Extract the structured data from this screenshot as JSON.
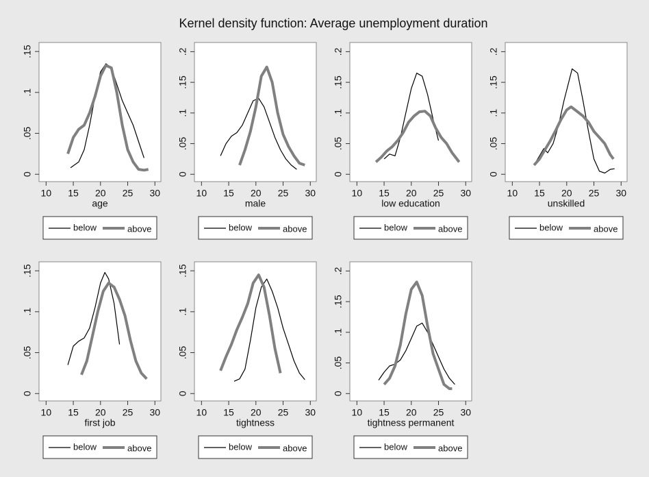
{
  "title": "Kernel density function: Average unemployment duration",
  "chart_data": [
    {
      "type": "line",
      "xlabel": "age",
      "xlim": [
        8.7,
        31.1
      ],
      "xticks": [
        10,
        15,
        20,
        25,
        30
      ],
      "ylim": [
        -0.009,
        0.161
      ],
      "yticks": [
        0,
        {
          "value": 0.05,
          "label": ".05"
        },
        {
          "value": 0.1,
          "label": ".1"
        },
        {
          "value": 0.15,
          "label": ".15"
        }
      ],
      "series": [
        {
          "name": "below",
          "color": "#000000",
          "x": [
            14.5,
            16,
            17,
            18,
            19,
            20,
            21,
            22,
            23,
            24,
            25,
            26,
            27,
            28
          ],
          "values": [
            0.008,
            0.015,
            0.03,
            0.06,
            0.095,
            0.125,
            0.135,
            0.13,
            0.11,
            0.09,
            0.075,
            0.06,
            0.04,
            0.02
          ]
        },
        {
          "name": "above",
          "color": "#808080",
          "x": [
            14,
            15,
            16,
            17,
            18,
            19,
            20,
            21,
            22,
            23,
            24,
            25,
            26,
            27,
            28,
            28.8
          ],
          "values": [
            0.025,
            0.045,
            0.055,
            0.06,
            0.075,
            0.095,
            0.12,
            0.133,
            0.13,
            0.1,
            0.06,
            0.03,
            0.015,
            0.006,
            0.005,
            0.006
          ]
        }
      ]
    },
    {
      "type": "line",
      "xlabel": "male",
      "xlim": [
        8.7,
        31.1
      ],
      "xticks": [
        10,
        15,
        20,
        25,
        30
      ],
      "ylim": [
        -0.012,
        0.215
      ],
      "yticks": [
        0,
        {
          "value": 0.05,
          "label": ".05"
        },
        {
          "value": 0.1,
          "label": ".1"
        },
        {
          "value": 0.15,
          "label": ".15"
        },
        {
          "value": 0.2,
          "label": ".2"
        }
      ],
      "series": [
        {
          "name": "below",
          "color": "#000000",
          "x": [
            13.5,
            14.5,
            15.5,
            16.5,
            17.5,
            18.5,
            19.5,
            20.5,
            21.5,
            22.5,
            23.5,
            24.5,
            25.5,
            26.5,
            27.5
          ],
          "values": [
            0.03,
            0.05,
            0.062,
            0.068,
            0.08,
            0.1,
            0.12,
            0.124,
            0.11,
            0.085,
            0.06,
            0.04,
            0.025,
            0.015,
            0.008
          ]
        },
        {
          "name": "above",
          "color": "#808080",
          "x": [
            17,
            18,
            19,
            20,
            21,
            22,
            23,
            24,
            25,
            26,
            27,
            28,
            29
          ],
          "values": [
            0.015,
            0.04,
            0.07,
            0.11,
            0.16,
            0.175,
            0.15,
            0.1,
            0.065,
            0.045,
            0.03,
            0.018,
            0.015
          ]
        }
      ]
    },
    {
      "type": "line",
      "xlabel": "low education",
      "xlim": [
        8.7,
        31.1
      ],
      "xticks": [
        10,
        15,
        20,
        25,
        30
      ],
      "ylim": [
        -0.012,
        0.215
      ],
      "yticks": [
        0,
        {
          "value": 0.05,
          "label": ".05"
        },
        {
          "value": 0.1,
          "label": ".1"
        },
        {
          "value": 0.15,
          "label": ".15"
        },
        {
          "value": 0.2,
          "label": ".2"
        }
      ],
      "series": [
        {
          "name": "below",
          "color": "#000000",
          "x": [
            15,
            16,
            17,
            18,
            19,
            20,
            21,
            22,
            23,
            24,
            25
          ],
          "values": [
            0.025,
            0.033,
            0.03,
            0.06,
            0.1,
            0.14,
            0.165,
            0.16,
            0.13,
            0.09,
            0.055
          ]
        },
        {
          "name": "above",
          "color": "#808080",
          "x": [
            13.5,
            14.5,
            15.5,
            16.5,
            17.5,
            18.5,
            19.5,
            20.5,
            21.5,
            22.5,
            23.5,
            24.5,
            25.5,
            26.5,
            27.5,
            28.8
          ],
          "values": [
            0.02,
            0.028,
            0.038,
            0.045,
            0.055,
            0.068,
            0.085,
            0.095,
            0.102,
            0.103,
            0.095,
            0.075,
            0.06,
            0.05,
            0.035,
            0.02
          ]
        }
      ]
    },
    {
      "type": "line",
      "xlabel": "unskilled",
      "xlim": [
        8.7,
        31.1
      ],
      "xticks": [
        10,
        15,
        20,
        25,
        30
      ],
      "ylim": [
        -0.012,
        0.215
      ],
      "yticks": [
        0,
        {
          "value": 0.05,
          "label": ".05"
        },
        {
          "value": 0.1,
          "label": ".1"
        },
        {
          "value": 0.15,
          "label": ".15"
        },
        {
          "value": 0.2,
          "label": ".2"
        }
      ],
      "series": [
        {
          "name": "below",
          "color": "#000000",
          "x": [
            14,
            15,
            15.8,
            16.5,
            17.5,
            18.5,
            19.5,
            20.5,
            21,
            22,
            23,
            24,
            25,
            26,
            27,
            28,
            28.8
          ],
          "values": [
            0.015,
            0.03,
            0.042,
            0.035,
            0.05,
            0.08,
            0.12,
            0.155,
            0.172,
            0.165,
            0.12,
            0.07,
            0.025,
            0.005,
            0.002,
            0.008,
            0.009
          ]
        },
        {
          "name": "above",
          "color": "#808080",
          "x": [
            14,
            15,
            16,
            17,
            18,
            19,
            20,
            20.8,
            22,
            23,
            24,
            25,
            26,
            27,
            28,
            28.6
          ],
          "values": [
            0.015,
            0.025,
            0.04,
            0.055,
            0.072,
            0.09,
            0.105,
            0.11,
            0.102,
            0.095,
            0.085,
            0.07,
            0.06,
            0.05,
            0.032,
            0.025
          ]
        }
      ]
    },
    {
      "type": "line",
      "xlabel": "first job",
      "xlim": [
        8.7,
        31.1
      ],
      "xticks": [
        10,
        15,
        20,
        25,
        30
      ],
      "ylim": [
        -0.009,
        0.161
      ],
      "yticks": [
        0,
        {
          "value": 0.05,
          "label": ".05"
        },
        {
          "value": 0.1,
          "label": ".1"
        },
        {
          "value": 0.15,
          "label": ".15"
        }
      ],
      "series": [
        {
          "name": "below",
          "color": "#000000",
          "x": [
            14,
            15,
            16,
            17,
            18,
            19,
            20,
            20.8,
            21.5,
            22.5,
            23.5
          ],
          "values": [
            0.035,
            0.058,
            0.064,
            0.068,
            0.08,
            0.105,
            0.135,
            0.148,
            0.14,
            0.11,
            0.06
          ]
        },
        {
          "name": "above",
          "color": "#808080",
          "x": [
            16.5,
            17.5,
            18.5,
            19.5,
            20.5,
            21.5,
            22.5,
            23.5,
            24.5,
            25.5,
            26.5,
            27.5,
            28.5
          ],
          "values": [
            0.023,
            0.04,
            0.07,
            0.1,
            0.125,
            0.135,
            0.13,
            0.115,
            0.095,
            0.065,
            0.04,
            0.025,
            0.018
          ]
        }
      ]
    },
    {
      "type": "line",
      "xlabel": "tightness",
      "xlim": [
        8.7,
        31.1
      ],
      "xticks": [
        10,
        15,
        20,
        25,
        30
      ],
      "ylim": [
        -0.009,
        0.161
      ],
      "yticks": [
        0,
        {
          "value": 0.05,
          "label": ".05"
        },
        {
          "value": 0.1,
          "label": ".1"
        },
        {
          "value": 0.15,
          "label": ".15"
        }
      ],
      "series": [
        {
          "name": "below",
          "color": "#000000",
          "x": [
            16,
            17,
            18,
            19,
            20,
            21,
            22,
            23,
            24,
            25,
            26,
            27,
            28,
            29
          ],
          "values": [
            0.015,
            0.018,
            0.03,
            0.065,
            0.105,
            0.13,
            0.14,
            0.125,
            0.105,
            0.08,
            0.06,
            0.04,
            0.025,
            0.017
          ]
        },
        {
          "name": "above",
          "color": "#808080",
          "x": [
            13.5,
            14.5,
            15.5,
            16.5,
            17.5,
            18.5,
            19.5,
            20.5,
            21.5,
            22.5,
            23.5,
            24.5
          ],
          "values": [
            0.028,
            0.045,
            0.06,
            0.078,
            0.093,
            0.11,
            0.135,
            0.145,
            0.13,
            0.095,
            0.055,
            0.025
          ]
        }
      ]
    },
    {
      "type": "line",
      "xlabel": "tightness permanent",
      "xlim": [
        8.7,
        31.1
      ],
      "xticks": [
        10,
        15,
        20,
        25,
        30
      ],
      "ylim": [
        -0.012,
        0.215
      ],
      "yticks": [
        0,
        {
          "value": 0.05,
          "label": ".05"
        },
        {
          "value": 0.1,
          "label": ".1"
        },
        {
          "value": 0.15,
          "label": ".15"
        },
        {
          "value": 0.2,
          "label": ".2"
        }
      ],
      "series": [
        {
          "name": "below",
          "color": "#000000",
          "x": [
            14,
            15,
            16,
            17,
            18,
            19,
            20,
            21,
            22,
            23,
            24,
            25,
            26,
            27,
            28
          ],
          "values": [
            0.022,
            0.035,
            0.045,
            0.048,
            0.055,
            0.07,
            0.09,
            0.11,
            0.115,
            0.1,
            0.08,
            0.06,
            0.04,
            0.025,
            0.015
          ]
        },
        {
          "name": "above",
          "color": "#808080",
          "x": [
            15,
            16,
            17,
            18,
            19,
            20,
            21,
            22,
            23,
            24,
            25,
            26,
            27,
            27.5
          ],
          "values": [
            0.015,
            0.025,
            0.045,
            0.08,
            0.13,
            0.17,
            0.182,
            0.16,
            0.11,
            0.065,
            0.04,
            0.015,
            0.008,
            0.008
          ]
        }
      ]
    }
  ]
}
